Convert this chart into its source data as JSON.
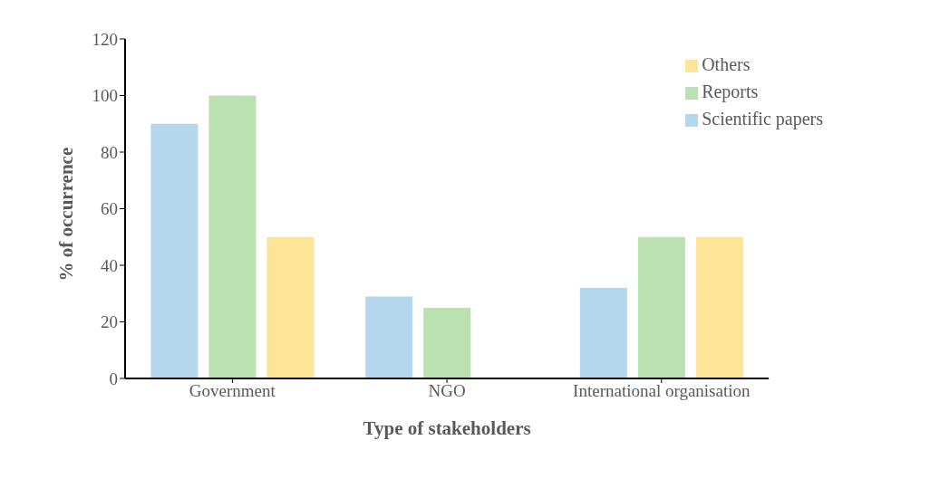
{
  "chart_data": {
    "type": "bar",
    "xlabel": "Type of stakeholders",
    "ylabel": "% of occurrence",
    "categories": [
      "Government",
      "NGO",
      "International organisation"
    ],
    "series": [
      {
        "name": "Scientific papers",
        "color": "#b4d7ee",
        "values": [
          90,
          29,
          32
        ]
      },
      {
        "name": "Reports",
        "color": "#bbe1b3",
        "values": [
          100,
          25,
          50
        ]
      },
      {
        "name": "Others",
        "color": "#fee496",
        "values": [
          50,
          null,
          50
        ]
      }
    ],
    "ylim": [
      0,
      120
    ],
    "yticks": [
      0,
      20,
      40,
      60,
      80,
      100,
      120
    ],
    "grid": false,
    "legend": "top right"
  }
}
